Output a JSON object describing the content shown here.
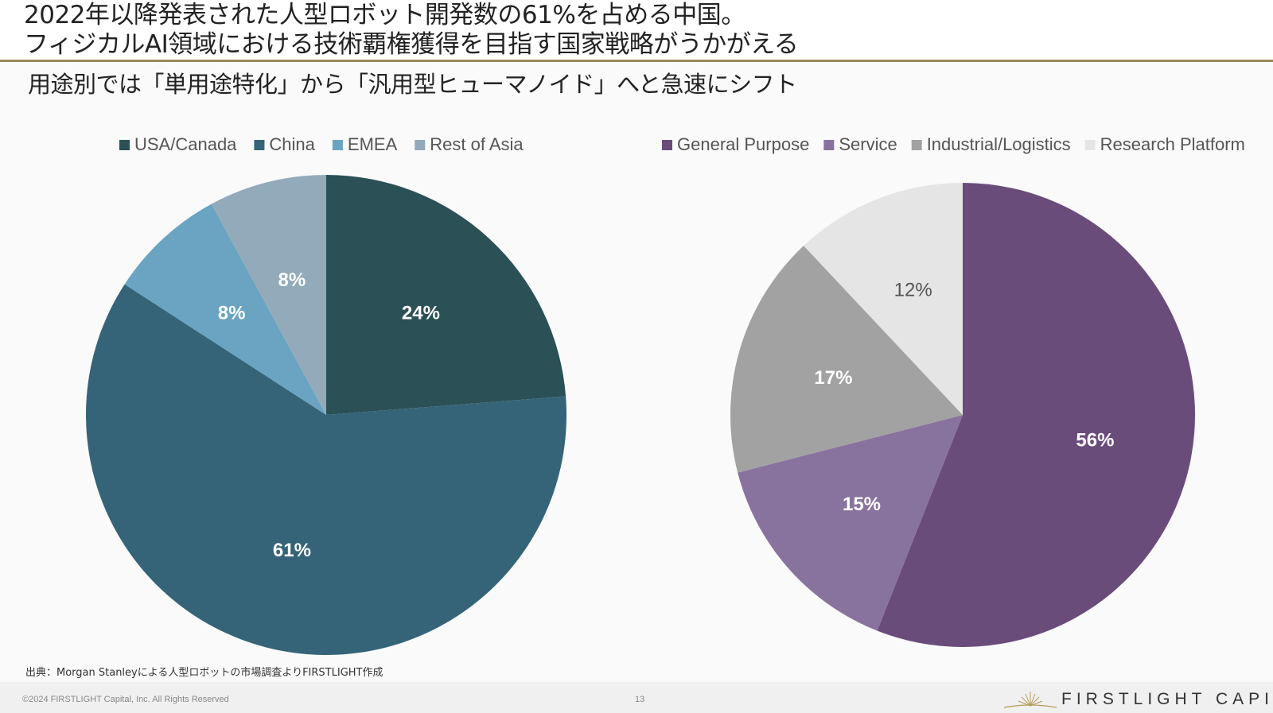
{
  "header": {
    "title_line1": "2022年以降発表された人型ロボット開発数の61%を占める中国。",
    "title_line2": "フィジカルAI領域における技術覇権獲得を目指す国家戦略がうかがえる",
    "subtitle": "用途別では「単用途特化」から「汎用型ヒューマノイド」へと急速にシフト"
  },
  "chart_data": [
    {
      "type": "pie",
      "title": "",
      "legend_position": "top",
      "slices": [
        {
          "name": "USA/Canada",
          "value": 24,
          "label": "24%",
          "color": "#2b5056"
        },
        {
          "name": "China",
          "value": 61,
          "label": "61%",
          "color": "#356478"
        },
        {
          "name": "EMEA",
          "value": 8,
          "label": "8%",
          "color": "#6aa4c2"
        },
        {
          "name": "Rest of Asia",
          "value": 8,
          "label": "8%",
          "color": "#93aabb"
        }
      ]
    },
    {
      "type": "pie",
      "title": "",
      "legend_position": "top",
      "slices": [
        {
          "name": "General Purpose",
          "value": 56,
          "label": "56%",
          "color": "#6a4c7b"
        },
        {
          "name": "Service",
          "value": 15,
          "label": "15%",
          "color": "#88739e"
        },
        {
          "name": "Industrial/Logistics",
          "value": 17,
          "label": "17%",
          "color": "#a2a2a2"
        },
        {
          "name": "Research Platform",
          "value": 12,
          "label": "12%",
          "color": "#e5e5e5"
        }
      ]
    }
  ],
  "source": "出典：Morgan Stanleyによる人型ロボットの市場調査よりFIRSTLIGHT作成",
  "footer": {
    "copyright": "©2024 FIRSTLIGHT Capital, Inc. All Rights Reserved",
    "page_number": "13",
    "brand": "FIRSTLIGHT CAPITAL"
  }
}
